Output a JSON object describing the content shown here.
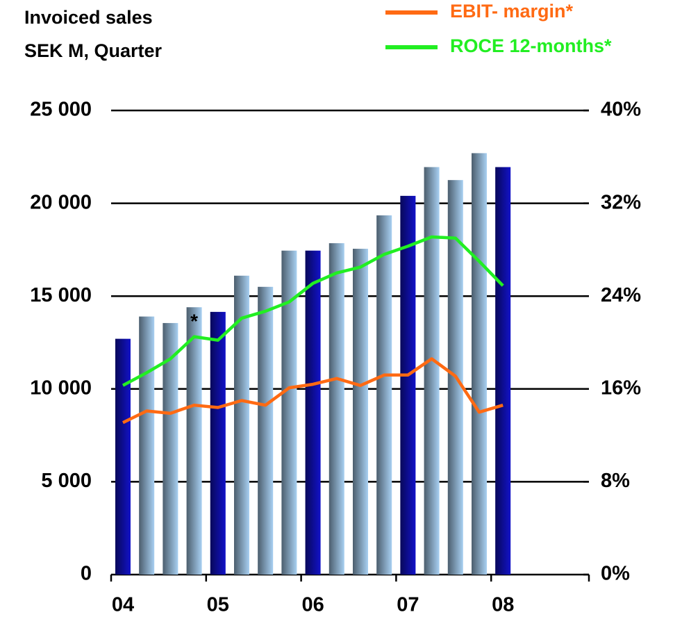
{
  "chart_data": {
    "type": "bar-line",
    "title": [
      "Invoiced sales",
      "SEK M, Quarter"
    ],
    "categories": [
      "04",
      null,
      null,
      null,
      "05",
      null,
      null,
      null,
      "06",
      null,
      null,
      null,
      "07",
      null,
      null,
      null,
      "08"
    ],
    "series": [
      {
        "name": null,
        "type": "bar",
        "colors": [
          "#1212c8",
          "#a8d0f2",
          "#a8d0f2",
          "#a8d0f2",
          "#1212c8",
          "#a8d0f2",
          "#a8d0f2",
          "#a8d0f2",
          "#1212c8",
          "#a8d0f2",
          "#a8d0f2",
          "#a8d0f2",
          "#1212c8",
          "#a8d0f2",
          "#a8d0f2",
          "#a8d0f2",
          "#1212c8"
        ],
        "values": [
          12700,
          13900,
          13550,
          14400,
          14150,
          16100,
          15500,
          17450,
          17450,
          17850,
          17550,
          19350,
          20400,
          21950,
          21250,
          22700,
          21950
        ]
      },
      {
        "name": "EBIT- margin*",
        "type": "line",
        "axis": "y2",
        "color": "#ff6a13",
        "values": [
          13.1,
          14.1,
          13.9,
          14.6,
          14.4,
          15.0,
          14.6,
          16.1,
          16.4,
          16.9,
          16.3,
          17.2,
          17.2,
          18.6,
          17.1,
          14.0,
          14.6
        ]
      },
      {
        "name": "ROCE 12-months*",
        "type": "line",
        "axis": "y2",
        "color": "#22ee22",
        "values": [
          16.3,
          17.4,
          18.6,
          20.5,
          20.2,
          22.1,
          22.7,
          23.5,
          25.1,
          26.0,
          26.5,
          27.6,
          28.3,
          29.1,
          29.0,
          27.0,
          24.9
        ]
      }
    ],
    "annotation": "*",
    "ylim": [
      0,
      25000
    ],
    "yticks": [
      {
        "value": 0,
        "label": "0"
      },
      {
        "value": 5000,
        "label": "5 000"
      },
      {
        "value": 10000,
        "label": "10 000"
      },
      {
        "value": 15000,
        "label": "15 000"
      },
      {
        "value": 20000,
        "label": "20 000"
      },
      {
        "value": 25000,
        "label": "25 000"
      }
    ],
    "y2lim": [
      0,
      40
    ],
    "y2ticks": [
      {
        "value": 0,
        "label": "0%"
      },
      {
        "value": 8,
        "label": "8%"
      },
      {
        "value": 16,
        "label": "16%"
      },
      {
        "value": 24,
        "label": "24%"
      },
      {
        "value": 32,
        "label": "32%"
      },
      {
        "value": 40,
        "label": "40%"
      }
    ],
    "grid": true,
    "legend": "top-right"
  }
}
